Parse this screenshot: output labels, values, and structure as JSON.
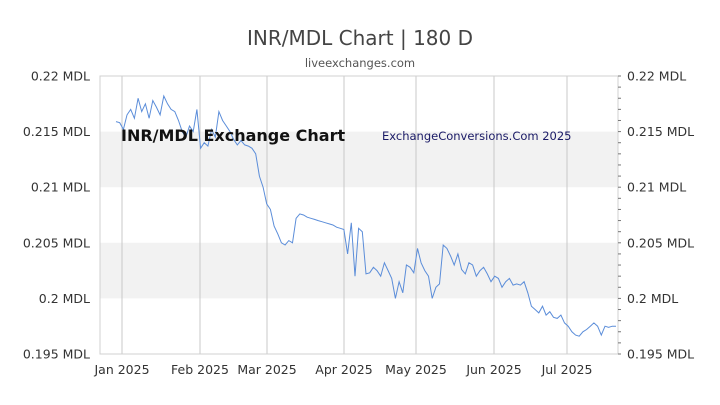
{
  "title": "INR/MDL Chart | 180 D",
  "subtitle": "liveexchanges.com",
  "overlay_primary": "INR/MDL Exchange Chart",
  "overlay_secondary": "ExchangeConversions.Com 2025",
  "colors": {
    "line": "#5b8dd9",
    "band": "#f2f2f2",
    "grid": "#c8c8c8",
    "text": "#333333"
  },
  "chart_data": {
    "type": "line",
    "ylim": [
      0.195,
      0.22
    ],
    "y_ticks": [
      {
        "value": 0.22,
        "label": "0.22 MDL"
      },
      {
        "value": 0.215,
        "label": "0.215 MDL"
      },
      {
        "value": 0.21,
        "label": "0.21 MDL"
      },
      {
        "value": 0.205,
        "label": "0.205 MDL"
      },
      {
        "value": 0.2,
        "label": "0.2 MDL"
      },
      {
        "value": 0.195,
        "label": "0.195 MDL"
      }
    ],
    "x_ticks": [
      "Jan 2025",
      "Feb 2025",
      "Mar 2025",
      "Apr 2025",
      "May 2025",
      "Jun 2025",
      "Jul 2025"
    ],
    "grid": true,
    "series": [
      {
        "values": [
          0.2159,
          0.2158,
          0.2152,
          0.2165,
          0.217,
          0.2162,
          0.218,
          0.2168,
          0.2175,
          0.2162,
          0.2178,
          0.2172,
          0.2165,
          0.2182,
          0.2175,
          0.217,
          0.2168,
          0.216,
          0.215,
          0.2145,
          0.2155,
          0.215,
          0.217,
          0.2135,
          0.214,
          0.2137,
          0.2152,
          0.2145,
          0.2168,
          0.216,
          0.2155,
          0.215,
          0.2143,
          0.2138,
          0.2142,
          0.2138,
          0.2137,
          0.2135,
          0.213,
          0.211,
          0.21,
          0.2085,
          0.208,
          0.2065,
          0.2058,
          0.205,
          0.2048,
          0.2052,
          0.205,
          0.2072,
          0.2076,
          0.2075,
          0.2073,
          0.2072,
          0.2071,
          0.207,
          0.2069,
          0.2068,
          0.2067,
          0.2066,
          0.2064,
          0.2063,
          0.2062,
          0.204,
          0.2068,
          0.202,
          0.2063,
          0.206,
          0.2022,
          0.2023,
          0.2028,
          0.2025,
          0.202,
          0.2032,
          0.2025,
          0.2018,
          0.2,
          0.2015,
          0.2005,
          0.203,
          0.2028,
          0.2023,
          0.2045,
          0.2032,
          0.2025,
          0.202,
          0.2,
          0.201,
          0.2013,
          0.2048,
          0.2045,
          0.2038,
          0.203,
          0.204,
          0.2026,
          0.2022,
          0.2032,
          0.203,
          0.202,
          0.2025,
          0.2028,
          0.2022,
          0.2015,
          0.202,
          0.2018,
          0.201,
          0.2015,
          0.2018,
          0.2012,
          0.2013,
          0.2012,
          0.2015,
          0.2005,
          0.1993,
          0.199,
          0.1987,
          0.1993,
          0.1985,
          0.1988,
          0.1983,
          0.1982,
          0.1985,
          0.1978,
          0.1975,
          0.197,
          0.1967,
          0.1966,
          0.197,
          0.1972,
          0.1975,
          0.1978,
          0.1975,
          0.1967,
          0.1975,
          0.1974,
          0.1975,
          0.1975
        ]
      }
    ]
  }
}
